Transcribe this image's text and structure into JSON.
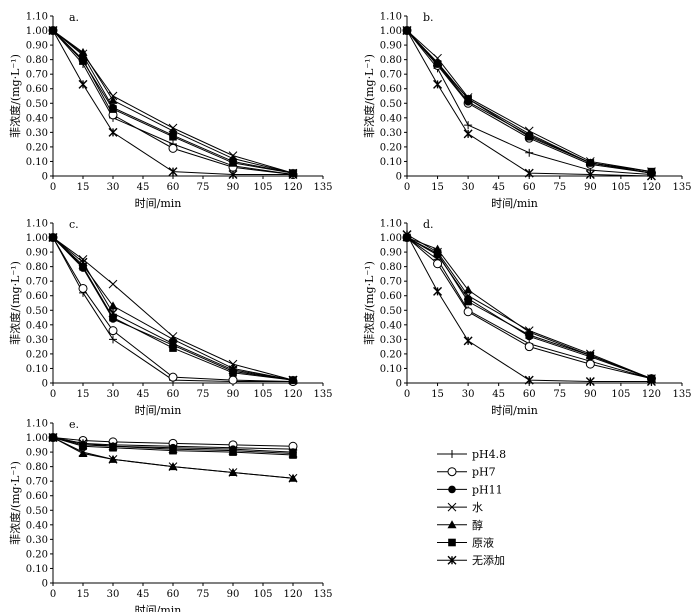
{
  "legend": [
    {
      "key": "pH48",
      "label": "pH4.8",
      "marker": "plus"
    },
    {
      "key": "pH7",
      "label": "pH7",
      "marker": "circle-open"
    },
    {
      "key": "pH11",
      "label": "pH11",
      "marker": "circle-filled"
    },
    {
      "key": "water",
      "label": "水",
      "marker": "x"
    },
    {
      "key": "alcohol",
      "label": "醇",
      "marker": "triangle-filled"
    },
    {
      "key": "stock",
      "label": "原液",
      "marker": "square-filled"
    },
    {
      "key": "none",
      "label": "无添加",
      "marker": "asterisk"
    }
  ],
  "chart_data": [
    {
      "panel": "a.",
      "type": "line",
      "xlabel": "时间/min",
      "ylabel": "菲浓度/(mg·L⁻¹)",
      "xlim": [
        0,
        135
      ],
      "ylim": [
        0,
        1.1
      ],
      "xticks": [
        0,
        15,
        30,
        45,
        60,
        75,
        90,
        105,
        120,
        135
      ],
      "xtick_labels": [
        "0",
        "15",
        "30",
        "45",
        "60",
        "75",
        "90",
        "105",
        "120",
        "135"
      ],
      "yticks": [
        0,
        0.1,
        0.2,
        0.3,
        0.4,
        0.5,
        0.6,
        0.7,
        0.8,
        0.9,
        1.0,
        1.1
      ],
      "ytick_labels": [
        "0",
        "0.10",
        "0.20",
        "0.30",
        "0.40",
        "0.50",
        "0.60",
        "0.70",
        "0.80",
        "0.90",
        "1.00",
        "1.10"
      ],
      "x": [
        0,
        15,
        30,
        60,
        90,
        120
      ],
      "series": [
        {
          "key": "pH48",
          "values": [
            1.0,
            0.77,
            0.4,
            0.22,
            0.07,
            0.01
          ]
        },
        {
          "key": "pH7",
          "values": [
            1.0,
            0.8,
            0.42,
            0.19,
            0.06,
            0.01
          ]
        },
        {
          "key": "pH11",
          "values": [
            1.0,
            0.83,
            0.47,
            0.28,
            0.1,
            0.02
          ]
        },
        {
          "key": "water",
          "values": [
            1.0,
            0.84,
            0.55,
            0.33,
            0.14,
            0.02
          ]
        },
        {
          "key": "alcohol",
          "values": [
            1.0,
            0.85,
            0.52,
            0.31,
            0.12,
            0.02
          ]
        },
        {
          "key": "stock",
          "values": [
            1.0,
            0.79,
            0.46,
            0.27,
            0.09,
            0.02
          ]
        },
        {
          "key": "none",
          "values": [
            1.0,
            0.63,
            0.3,
            0.03,
            0.01,
            0.01
          ]
        }
      ]
    },
    {
      "panel": "b.",
      "type": "line",
      "xlabel": "时间/min",
      "ylabel": "菲浓度/(mg·L⁻¹)",
      "xlim": [
        0,
        135
      ],
      "ylim": [
        0,
        1.1
      ],
      "xticks": [
        0,
        15,
        30,
        45,
        60,
        75,
        90,
        105,
        120,
        135
      ],
      "xtick_labels": [
        "0",
        "15",
        "30",
        "45",
        "60",
        "75",
        "90",
        "105",
        "120",
        "135"
      ],
      "yticks": [
        0,
        0.1,
        0.2,
        0.3,
        0.4,
        0.5,
        0.6,
        0.7,
        0.8,
        0.9,
        1.0,
        1.1
      ],
      "ytick_labels": [
        "0",
        "0.10",
        "0.20",
        "0.30",
        "0.40",
        "0.50",
        "0.60",
        "0.70",
        "0.80",
        "0.90",
        "1.00",
        "1.10"
      ],
      "x": [
        0,
        15,
        30,
        60,
        90,
        120
      ],
      "series": [
        {
          "key": "pH48",
          "values": [
            1.0,
            0.74,
            0.35,
            0.16,
            0.04,
            0.01
          ]
        },
        {
          "key": "pH7",
          "values": [
            1.0,
            0.76,
            0.5,
            0.26,
            0.08,
            0.02
          ]
        },
        {
          "key": "pH11",
          "values": [
            1.0,
            0.77,
            0.51,
            0.28,
            0.09,
            0.02
          ]
        },
        {
          "key": "water",
          "values": [
            1.0,
            0.81,
            0.54,
            0.31,
            0.1,
            0.03
          ]
        },
        {
          "key": "alcohol",
          "values": [
            1.0,
            0.78,
            0.53,
            0.29,
            0.09,
            0.02
          ]
        },
        {
          "key": "stock",
          "values": [
            1.0,
            0.77,
            0.53,
            0.27,
            0.09,
            0.03
          ]
        },
        {
          "key": "none",
          "values": [
            1.0,
            0.63,
            0.29,
            0.02,
            0.01,
            0.0
          ]
        }
      ]
    },
    {
      "panel": "c.",
      "type": "line",
      "xlabel": "时间/min",
      "ylabel": "菲浓度/(mg·L⁻¹)",
      "xlim": [
        0,
        135
      ],
      "ylim": [
        0,
        1.1
      ],
      "xticks": [
        0,
        15,
        30,
        45,
        60,
        75,
        90,
        105,
        120,
        135
      ],
      "xtick_labels": [
        "0",
        "15",
        "30",
        "45",
        "60",
        "75",
        "90",
        "105",
        "120",
        "135"
      ],
      "yticks": [
        0,
        0.1,
        0.2,
        0.3,
        0.4,
        0.5,
        0.6,
        0.7,
        0.8,
        0.9,
        1.0,
        1.1
      ],
      "ytick_labels": [
        "0",
        "0.10",
        "0.20",
        "0.30",
        "0.40",
        "0.50",
        "0.60",
        "0.70",
        "0.80",
        "0.90",
        "1.00",
        "1.10"
      ],
      "x": [
        0,
        15,
        30,
        60,
        90,
        120
      ],
      "series": [
        {
          "key": "pH48",
          "values": [
            1.0,
            0.62,
            0.3,
            0.02,
            0.01,
            0.01
          ]
        },
        {
          "key": "pH7",
          "values": [
            1.0,
            0.65,
            0.36,
            0.04,
            0.02,
            0.01
          ]
        },
        {
          "key": "pH11",
          "values": [
            1.0,
            0.79,
            0.44,
            0.26,
            0.08,
            0.02
          ]
        },
        {
          "key": "water",
          "values": [
            1.0,
            0.85,
            0.68,
            0.32,
            0.13,
            0.02
          ]
        },
        {
          "key": "alcohol",
          "values": [
            1.0,
            0.81,
            0.53,
            0.3,
            0.1,
            0.02
          ]
        },
        {
          "key": "stock",
          "values": [
            1.0,
            0.8,
            0.45,
            0.24,
            0.07,
            0.02
          ]
        },
        {
          "key": "none",
          "values": [
            1.0,
            0.83,
            0.48,
            0.27,
            0.09,
            0.02
          ]
        }
      ]
    },
    {
      "panel": "d.",
      "type": "line",
      "xlabel": "时间/min",
      "ylabel": "菲浓度/(mg·L⁻¹)",
      "xlim": [
        0,
        135
      ],
      "ylim": [
        0,
        1.1
      ],
      "xticks": [
        0,
        15,
        30,
        45,
        60,
        75,
        90,
        105,
        120,
        135
      ],
      "xtick_labels": [
        "0",
        "15",
        "30",
        "45",
        "60",
        "75",
        "90",
        "105",
        "120",
        "135"
      ],
      "yticks": [
        0,
        0.1,
        0.2,
        0.3,
        0.4,
        0.5,
        0.6,
        0.7,
        0.8,
        0.9,
        1.0,
        1.1
      ],
      "ytick_labels": [
        "0",
        "0.10",
        "0.20",
        "0.30",
        "0.40",
        "0.50",
        "0.60",
        "0.70",
        "0.80",
        "0.90",
        "1.00",
        "1.10"
      ],
      "x": [
        0,
        15,
        30,
        60,
        90,
        120
      ],
      "series": [
        {
          "key": "pH48",
          "values": [
            1.0,
            0.85,
            0.5,
            0.27,
            0.15,
            0.03
          ]
        },
        {
          "key": "pH7",
          "values": [
            1.0,
            0.82,
            0.49,
            0.25,
            0.13,
            0.03
          ]
        },
        {
          "key": "pH11",
          "values": [
            1.0,
            0.88,
            0.58,
            0.32,
            0.18,
            0.03
          ]
        },
        {
          "key": "water",
          "values": [
            1.02,
            0.9,
            0.6,
            0.36,
            0.2,
            0.03
          ]
        },
        {
          "key": "alcohol",
          "values": [
            1.0,
            0.92,
            0.64,
            0.35,
            0.19,
            0.03
          ]
        },
        {
          "key": "stock",
          "values": [
            1.0,
            0.89,
            0.56,
            0.33,
            0.19,
            0.03
          ]
        },
        {
          "key": "none",
          "values": [
            1.02,
            0.63,
            0.29,
            0.02,
            0.01,
            0.01
          ]
        }
      ]
    },
    {
      "panel": "e.",
      "type": "line",
      "xlabel": "时间/min",
      "ylabel": "菲浓度/(mg·L⁻¹)",
      "xlim": [
        0,
        135
      ],
      "ylim": [
        0,
        1.1
      ],
      "xticks": [
        0,
        15,
        30,
        45,
        60,
        75,
        90,
        105,
        120,
        135
      ],
      "xtick_labels": [
        "0",
        "15",
        "30",
        "45",
        "60",
        "75",
        "90",
        "105",
        "120",
        "135"
      ],
      "yticks": [
        0,
        0.1,
        0.2,
        0.3,
        0.4,
        0.5,
        0.6,
        0.7,
        0.8,
        0.9,
        1.0,
        1.1
      ],
      "ytick_labels": [
        "0",
        "0.10",
        "0.20",
        "0.30",
        "0.40",
        "0.50",
        "0.60",
        "0.70",
        "0.80",
        "0.90",
        "1.00",
        "1.10"
      ],
      "x": [
        0,
        15,
        30,
        60,
        90,
        120
      ],
      "series": [
        {
          "key": "pH48",
          "values": [
            1.0,
            0.96,
            0.95,
            0.94,
            0.93,
            0.92
          ]
        },
        {
          "key": "pH7",
          "values": [
            1.0,
            0.98,
            0.97,
            0.96,
            0.95,
            0.94
          ]
        },
        {
          "key": "pH11",
          "values": [
            1.0,
            0.95,
            0.94,
            0.93,
            0.92,
            0.9
          ]
        },
        {
          "key": "water",
          "values": [
            1.0,
            0.9,
            0.85,
            0.8,
            0.76,
            0.72
          ]
        },
        {
          "key": "alcohol",
          "values": [
            1.0,
            0.89,
            0.85,
            0.8,
            0.76,
            0.72
          ]
        },
        {
          "key": "stock",
          "values": [
            1.0,
            0.94,
            0.93,
            0.91,
            0.9,
            0.88
          ]
        },
        {
          "key": "none",
          "values": [
            1.0,
            0.96,
            0.94,
            0.92,
            0.91,
            0.89
          ]
        }
      ]
    }
  ]
}
